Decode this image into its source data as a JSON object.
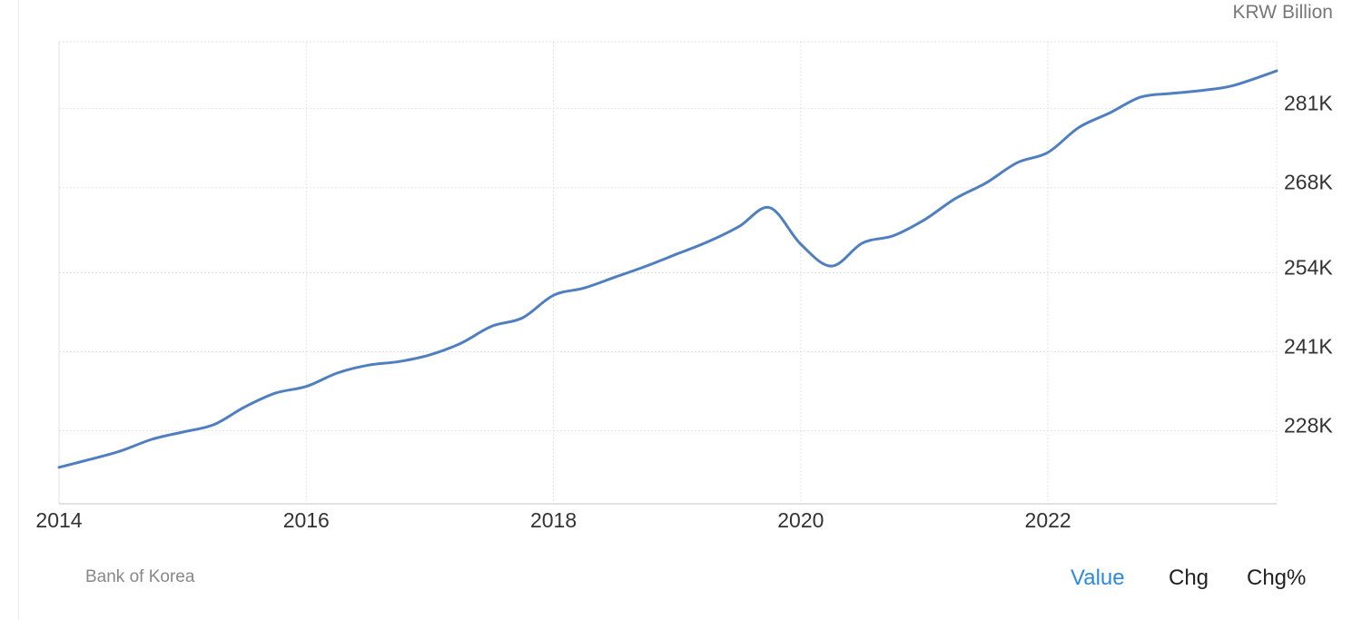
{
  "unit_label": "KRW Billion",
  "source": "Bank of Korea",
  "tabs": [
    {
      "label": "Value",
      "active": true
    },
    {
      "label": "Chg",
      "active": false
    },
    {
      "label": "Chg%",
      "active": false
    }
  ],
  "colors": {
    "line": "#4f7fbf",
    "active_tab": "#2a8bdc",
    "grid": "#e3e3e3"
  },
  "chart_data": {
    "type": "line",
    "title": "",
    "xlabel": "",
    "ylabel": "KRW Billion",
    "xlim": [
      2014.0,
      2023.85
    ],
    "ylim": [
      216000,
      292000
    ],
    "x_ticks": [
      2014,
      2016,
      2018,
      2020,
      2022
    ],
    "x_tick_labels": [
      "2014",
      "2016",
      "2018",
      "2020",
      "2022"
    ],
    "y_ticks": [
      228000,
      241000,
      254000,
      268000,
      281000
    ],
    "y_tick_labels": [
      "228K",
      "241K",
      "254K",
      "268K",
      "281K"
    ],
    "y_axis_position": "right",
    "grid": true,
    "series": [
      {
        "x": [
          2014.0,
          2014.25,
          2014.5,
          2014.75,
          2015.0,
          2015.25,
          2015.5,
          2015.75,
          2016.0,
          2016.25,
          2016.5,
          2016.75,
          2017.0,
          2017.25,
          2017.5,
          2017.75,
          2018.0,
          2018.25,
          2018.5,
          2018.75,
          2019.0,
          2019.25,
          2019.5,
          2019.75,
          2020.0,
          2020.25,
          2020.5,
          2020.75,
          2021.0,
          2021.25,
          2021.5,
          2021.75,
          2022.0,
          2022.25,
          2022.5,
          2022.75,
          2023.0,
          2023.25,
          2023.5,
          2023.85
        ],
        "y": [
          222000,
          223300,
          224700,
          226600,
          227800,
          229000,
          231900,
          234200,
          235300,
          237500,
          238800,
          239400,
          240500,
          242400,
          245200,
          246600,
          250300,
          251500,
          253300,
          255100,
          257100,
          259100,
          261600,
          264700,
          258700,
          255100,
          258900,
          260100,
          262700,
          266200,
          268800,
          272100,
          273800,
          277900,
          280300,
          282900,
          283500,
          284000,
          284800,
          287200
        ]
      }
    ]
  }
}
